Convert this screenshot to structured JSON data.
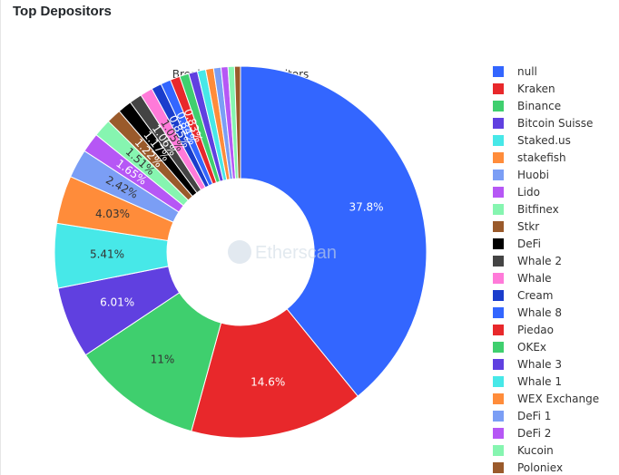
{
  "header": {
    "title": "Top Depositors"
  },
  "watermark": {
    "text": "Etherscan"
  },
  "chart_data": {
    "type": "pie",
    "title": "Breakdown of Depositors",
    "hole": true,
    "legend_position": "right",
    "labels": [
      "null",
      "Kraken",
      "Binance",
      "Bitcoin Suisse",
      "Staked.us",
      "stakefish",
      "Huobi",
      "Lido",
      "Bitfinex",
      "Stkr",
      "DeFi",
      "Whale 2",
      "Whale",
      "Cream",
      "Whale 8",
      "Piedao",
      "OKEx",
      "Whale 3",
      "Whale 1",
      "WEX Exchange",
      "DeFi 1",
      "DeFi 2",
      "Kucoin",
      "Poloniex"
    ],
    "values": [
      37.8,
      14.6,
      11,
      6.01,
      5.41,
      4.03,
      2.42,
      1.65,
      1.51,
      1.22,
      1.17,
      1.06,
      1.05,
      0.85,
      0.84,
      0.83,
      0.78,
      0.74,
      0.7,
      0.66,
      0.62,
      0.58,
      0.54,
      0.5
    ],
    "value_labels": [
      "37.8%",
      "14.6%",
      "11%",
      "6.01%",
      "5.41%",
      "4.03%",
      "2.42%",
      "1.65%",
      "1.51%",
      "1.22%",
      "1.17%",
      "1.06%",
      "1.05%",
      "0.85%",
      "0.84%",
      "0.83%",
      "",
      "",
      "",
      "",
      "",
      "",
      "",
      ""
    ],
    "colors": [
      "#3366ff",
      "#e8282b",
      "#3fcf6e",
      "#6040e0",
      "#47e8e8",
      "#ff8c3a",
      "#7b9ef5",
      "#b657f5",
      "#86f5b0",
      "#9a5a2b",
      "#000000",
      "#444444",
      "#ff7ad9",
      "#1a3dcc",
      "#3366ff",
      "#e8282b",
      "#3fcf6e",
      "#6040e0",
      "#47e8e8",
      "#ff8c3a",
      "#7b9ef5",
      "#b657f5",
      "#86f5b0",
      "#9a5a2b"
    ],
    "label_colors": [
      "#ffffff",
      "#ffffff",
      "#333333",
      "#ffffff",
      "#333333",
      "#333333",
      "#333333",
      "#ffffff",
      "#333333",
      "#ffffff",
      "#ffffff",
      "#ffffff",
      "#333333",
      "#ffffff",
      "#ffffff",
      "#ffffff",
      "#ffffff",
      "#ffffff",
      "#ffffff",
      "#ffffff",
      "#ffffff",
      "#ffffff",
      "#ffffff",
      "#ffffff"
    ]
  }
}
